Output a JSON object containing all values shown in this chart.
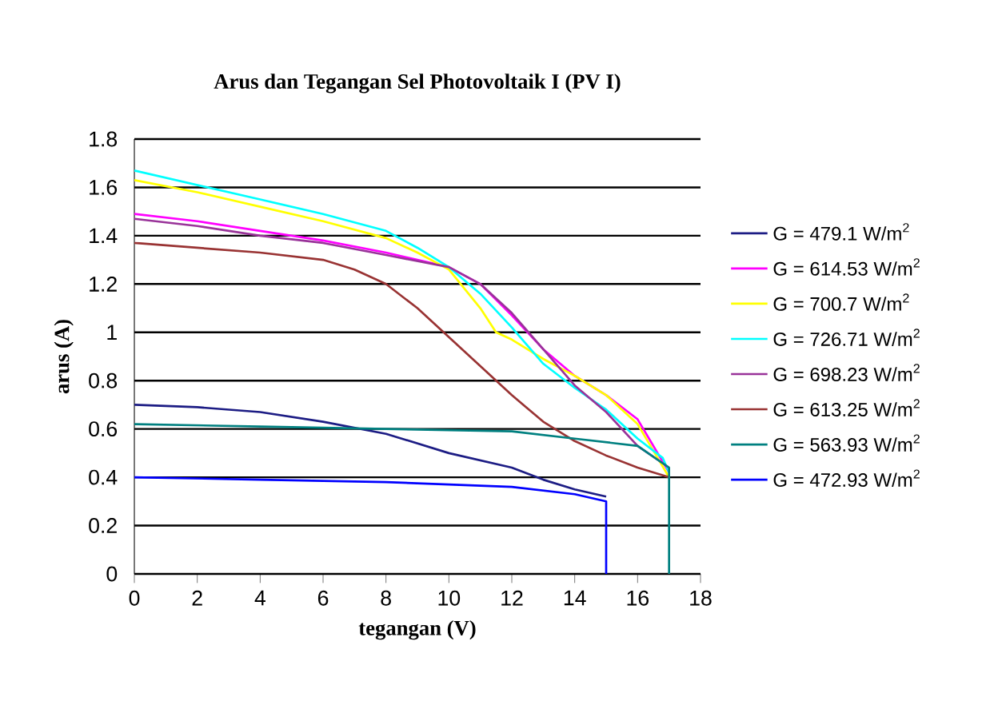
{
  "chart_data": {
    "type": "line",
    "title": "Arus dan Tegangan Sel Photovoltaik I (PV I)",
    "xlabel": "tegangan (V)",
    "ylabel": "arus (A)",
    "xlim": [
      0,
      18
    ],
    "xticks": [
      0,
      2,
      4,
      6,
      8,
      10,
      12,
      14,
      16,
      18
    ],
    "ylim": [
      0,
      1.8
    ],
    "yticks": [
      0,
      0.2,
      0.4,
      0.6,
      0.8,
      1,
      1.2,
      1.4,
      1.6,
      1.8
    ],
    "grid": "y",
    "legend": "right",
    "marker": "none",
    "line_style": "solid",
    "series": [
      {
        "name": "G = 479.1 W/m$^{2}$",
        "color": "#1c1c84",
        "x": [
          0,
          2,
          4,
          6,
          8,
          10,
          12,
          13,
          14,
          15
        ],
        "values": [
          0.7,
          0.69,
          0.67,
          0.63,
          0.58,
          0.5,
          0.44,
          0.39,
          0.35,
          0.32
        ]
      },
      {
        "name": "G = 614.53 W/m$^{2}$",
        "color": "#ff00ff",
        "x": [
          0,
          2,
          4,
          6,
          8,
          10,
          11,
          12,
          13,
          14,
          15,
          16,
          17
        ],
        "values": [
          1.49,
          1.46,
          1.42,
          1.38,
          1.33,
          1.27,
          1.2,
          1.07,
          0.93,
          0.82,
          0.74,
          0.64,
          0.42
        ]
      },
      {
        "name": "G = 700.7 W/m$^{2}$",
        "color": "#ffff00",
        "x": [
          0,
          2,
          4,
          6,
          8,
          9,
          10,
          11,
          11.5,
          12,
          13,
          14,
          15,
          16,
          17
        ],
        "values": [
          1.63,
          1.58,
          1.52,
          1.46,
          1.39,
          1.33,
          1.26,
          1.1,
          1.0,
          0.97,
          0.89,
          0.82,
          0.74,
          0.62,
          0.4
        ]
      },
      {
        "name": "G = 726.71 W/m$^{2}$",
        "color": "#00ffff",
        "x": [
          0,
          2,
          4,
          6,
          8,
          9,
          10,
          11,
          12,
          13,
          14,
          15,
          16,
          16.8,
          17
        ],
        "values": [
          1.67,
          1.61,
          1.55,
          1.49,
          1.42,
          1.35,
          1.27,
          1.16,
          1.02,
          0.87,
          0.77,
          0.68,
          0.56,
          0.48,
          0.42
        ]
      },
      {
        "name": "G = 698.23 W/m$^{2}$",
        "color": "#993399",
        "x": [
          0,
          2,
          4,
          6,
          8,
          10,
          11,
          12,
          13,
          14,
          15,
          16,
          17
        ],
        "values": [
          1.47,
          1.44,
          1.4,
          1.37,
          1.32,
          1.27,
          1.2,
          1.08,
          0.93,
          0.78,
          0.67,
          0.53,
          0.44
        ]
      },
      {
        "name": "G = 613.25 W/m$^{2}$",
        "color": "#993333",
        "x": [
          0,
          2,
          4,
          6,
          7,
          8,
          9,
          10,
          11,
          12,
          13,
          14,
          15,
          16,
          17
        ],
        "values": [
          1.37,
          1.35,
          1.33,
          1.3,
          1.26,
          1.2,
          1.1,
          0.98,
          0.86,
          0.74,
          0.63,
          0.55,
          0.49,
          0.44,
          0.4
        ]
      },
      {
        "name": "G = 563.93 W/m$^{2}$",
        "color": "#008080",
        "x": [
          0,
          4,
          8,
          12,
          14,
          16,
          17,
          17
        ],
        "values": [
          0.62,
          0.61,
          0.6,
          0.59,
          0.56,
          0.53,
          0.44,
          0
        ]
      },
      {
        "name": "G = 472.93 W/m$^{2}$",
        "color": "#0000ff",
        "x": [
          0,
          4,
          8,
          10,
          12,
          14,
          15,
          15
        ],
        "values": [
          0.4,
          0.39,
          0.38,
          0.37,
          0.36,
          0.33,
          0.3,
          0
        ]
      }
    ]
  }
}
